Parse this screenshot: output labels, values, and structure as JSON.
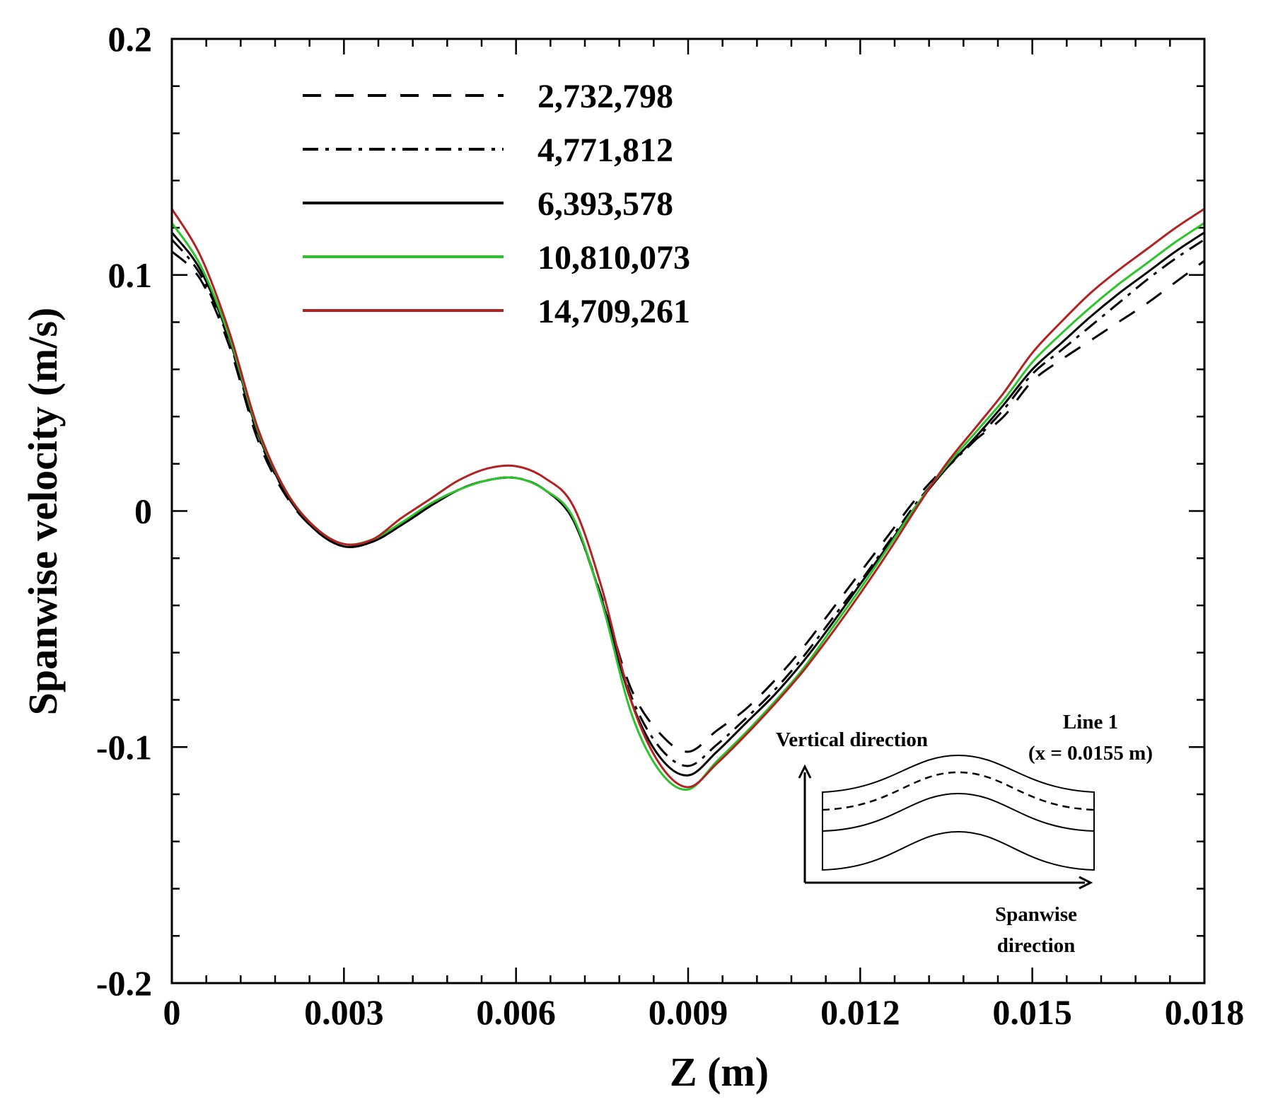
{
  "chart_data": {
    "type": "line",
    "title": "",
    "xlabel": "Z (m)",
    "ylabel": "Spanwise velocity (m/s)",
    "xlim": [
      0,
      0.018
    ],
    "ylim": [
      -0.2,
      0.2
    ],
    "xticks": [
      0,
      0.003,
      0.006,
      0.009,
      0.012,
      0.015,
      0.018
    ],
    "xtick_labels": [
      "0",
      "0.003",
      "0.006",
      "0.009",
      "0.012",
      "0.015",
      "0.018"
    ],
    "yticks": [
      -0.2,
      -0.1,
      0,
      0.1,
      0.2
    ],
    "ytick_labels": [
      "-0.2",
      "-0.1",
      "0",
      "0.1",
      "0.2"
    ],
    "grid": false,
    "legend_position": "top-left",
    "series": [
      {
        "name": "2,732,798",
        "color": "#000000",
        "style": "dashed",
        "x": [
          0,
          0.0005,
          0.001,
          0.0015,
          0.002,
          0.0025,
          0.003,
          0.0035,
          0.004,
          0.0045,
          0.005,
          0.0055,
          0.006,
          0.0065,
          0.007,
          0.0075,
          0.008,
          0.0085,
          0.009,
          0.0095,
          0.01,
          0.0105,
          0.011,
          0.0115,
          0.012,
          0.0125,
          0.013,
          0.0135,
          0.014,
          0.0145,
          0.015,
          0.0155,
          0.016,
          0.0165,
          0.017,
          0.0175,
          0.018
        ],
        "values": [
          0.11,
          0.098,
          0.07,
          0.03,
          0.006,
          -0.008,
          -0.015,
          -0.013,
          -0.006,
          0.002,
          0.009,
          0.013,
          0.014,
          0.009,
          -0.004,
          -0.037,
          -0.075,
          -0.094,
          -0.102,
          -0.093,
          -0.084,
          -0.072,
          -0.058,
          -0.042,
          -0.026,
          -0.01,
          0.006,
          0.019,
          0.03,
          0.04,
          0.055,
          0.064,
          0.072,
          0.08,
          0.088,
          0.097,
          0.106
        ]
      },
      {
        "name": "4,771,812",
        "color": "#000000",
        "style": "dashdot",
        "x": [
          0,
          0.0005,
          0.001,
          0.0015,
          0.002,
          0.0025,
          0.003,
          0.0035,
          0.004,
          0.0045,
          0.005,
          0.0055,
          0.006,
          0.0065,
          0.007,
          0.0075,
          0.008,
          0.0085,
          0.009,
          0.0095,
          0.01,
          0.0105,
          0.011,
          0.0115,
          0.012,
          0.0125,
          0.013,
          0.0135,
          0.014,
          0.0145,
          0.015,
          0.0155,
          0.016,
          0.0165,
          0.017,
          0.0175,
          0.018
        ],
        "values": [
          0.115,
          0.1,
          0.072,
          0.032,
          0.007,
          -0.008,
          -0.015,
          -0.013,
          -0.006,
          0.002,
          0.009,
          0.013,
          0.014,
          0.009,
          -0.004,
          -0.038,
          -0.078,
          -0.1,
          -0.108,
          -0.099,
          -0.088,
          -0.076,
          -0.062,
          -0.046,
          -0.03,
          -0.013,
          0.004,
          0.018,
          0.03,
          0.043,
          0.058,
          0.068,
          0.078,
          0.088,
          0.098,
          0.107,
          0.115
        ]
      },
      {
        "name": "6,393,578",
        "color": "#000000",
        "style": "solid",
        "x": [
          0,
          0.0005,
          0.001,
          0.0015,
          0.002,
          0.0025,
          0.003,
          0.0035,
          0.004,
          0.0045,
          0.005,
          0.0055,
          0.006,
          0.0065,
          0.007,
          0.0075,
          0.008,
          0.0085,
          0.009,
          0.0095,
          0.01,
          0.0105,
          0.011,
          0.0115,
          0.012,
          0.0125,
          0.013,
          0.0135,
          0.014,
          0.0145,
          0.015,
          0.0155,
          0.016,
          0.0165,
          0.017,
          0.0175,
          0.018
        ],
        "values": [
          0.118,
          0.102,
          0.073,
          0.033,
          0.007,
          -0.008,
          -0.015,
          -0.013,
          -0.006,
          0.002,
          0.009,
          0.013,
          0.014,
          0.009,
          -0.004,
          -0.038,
          -0.08,
          -0.104,
          -0.112,
          -0.102,
          -0.09,
          -0.078,
          -0.064,
          -0.048,
          -0.031,
          -0.014,
          0.003,
          0.018,
          0.031,
          0.045,
          0.06,
          0.071,
          0.082,
          0.092,
          0.101,
          0.11,
          0.118
        ]
      },
      {
        "name": "10,810,073",
        "color": "#2bc42b",
        "style": "solid",
        "x": [
          0,
          0.0005,
          0.001,
          0.0015,
          0.002,
          0.0025,
          0.003,
          0.0035,
          0.004,
          0.0045,
          0.005,
          0.0055,
          0.006,
          0.0065,
          0.007,
          0.0075,
          0.008,
          0.0085,
          0.009,
          0.0095,
          0.01,
          0.0105,
          0.011,
          0.0115,
          0.012,
          0.0125,
          0.013,
          0.0135,
          0.014,
          0.0145,
          0.015,
          0.0155,
          0.016,
          0.0165,
          0.017,
          0.0175,
          0.018
        ],
        "values": [
          0.122,
          0.104,
          0.074,
          0.034,
          0.008,
          -0.007,
          -0.014,
          -0.012,
          -0.005,
          0.003,
          0.009,
          0.013,
          0.014,
          0.009,
          -0.003,
          -0.039,
          -0.085,
          -0.11,
          -0.118,
          -0.106,
          -0.094,
          -0.081,
          -0.067,
          -0.05,
          -0.033,
          -0.015,
          0.003,
          0.019,
          0.033,
          0.047,
          0.063,
          0.075,
          0.086,
          0.096,
          0.105,
          0.114,
          0.122
        ]
      },
      {
        "name": "14,709,261",
        "color": "#b22222",
        "style": "solid",
        "x": [
          0,
          0.0005,
          0.001,
          0.0015,
          0.002,
          0.0025,
          0.003,
          0.0035,
          0.004,
          0.0045,
          0.005,
          0.0055,
          0.006,
          0.0065,
          0.007,
          0.0075,
          0.008,
          0.0085,
          0.009,
          0.0095,
          0.01,
          0.0105,
          0.011,
          0.0115,
          0.012,
          0.0125,
          0.013,
          0.0135,
          0.014,
          0.0145,
          0.015,
          0.0155,
          0.016,
          0.0165,
          0.017,
          0.0175,
          0.018
        ],
        "values": [
          0.128,
          0.108,
          0.076,
          0.035,
          0.008,
          -0.007,
          -0.014,
          -0.012,
          -0.003,
          0.005,
          0.013,
          0.018,
          0.019,
          0.014,
          0.002,
          -0.033,
          -0.08,
          -0.107,
          -0.117,
          -0.107,
          -0.095,
          -0.082,
          -0.068,
          -0.052,
          -0.035,
          -0.017,
          0.002,
          0.02,
          0.035,
          0.05,
          0.067,
          0.08,
          0.092,
          0.102,
          0.111,
          0.12,
          0.128
        ]
      }
    ],
    "inset": {
      "title_line1": "Line 1",
      "title_line2": "(x = 0.0155 m)",
      "vertical_label": "Vertical direction",
      "horizontal_label_line1": "Spanwise",
      "horizontal_label_line2": "direction"
    }
  }
}
